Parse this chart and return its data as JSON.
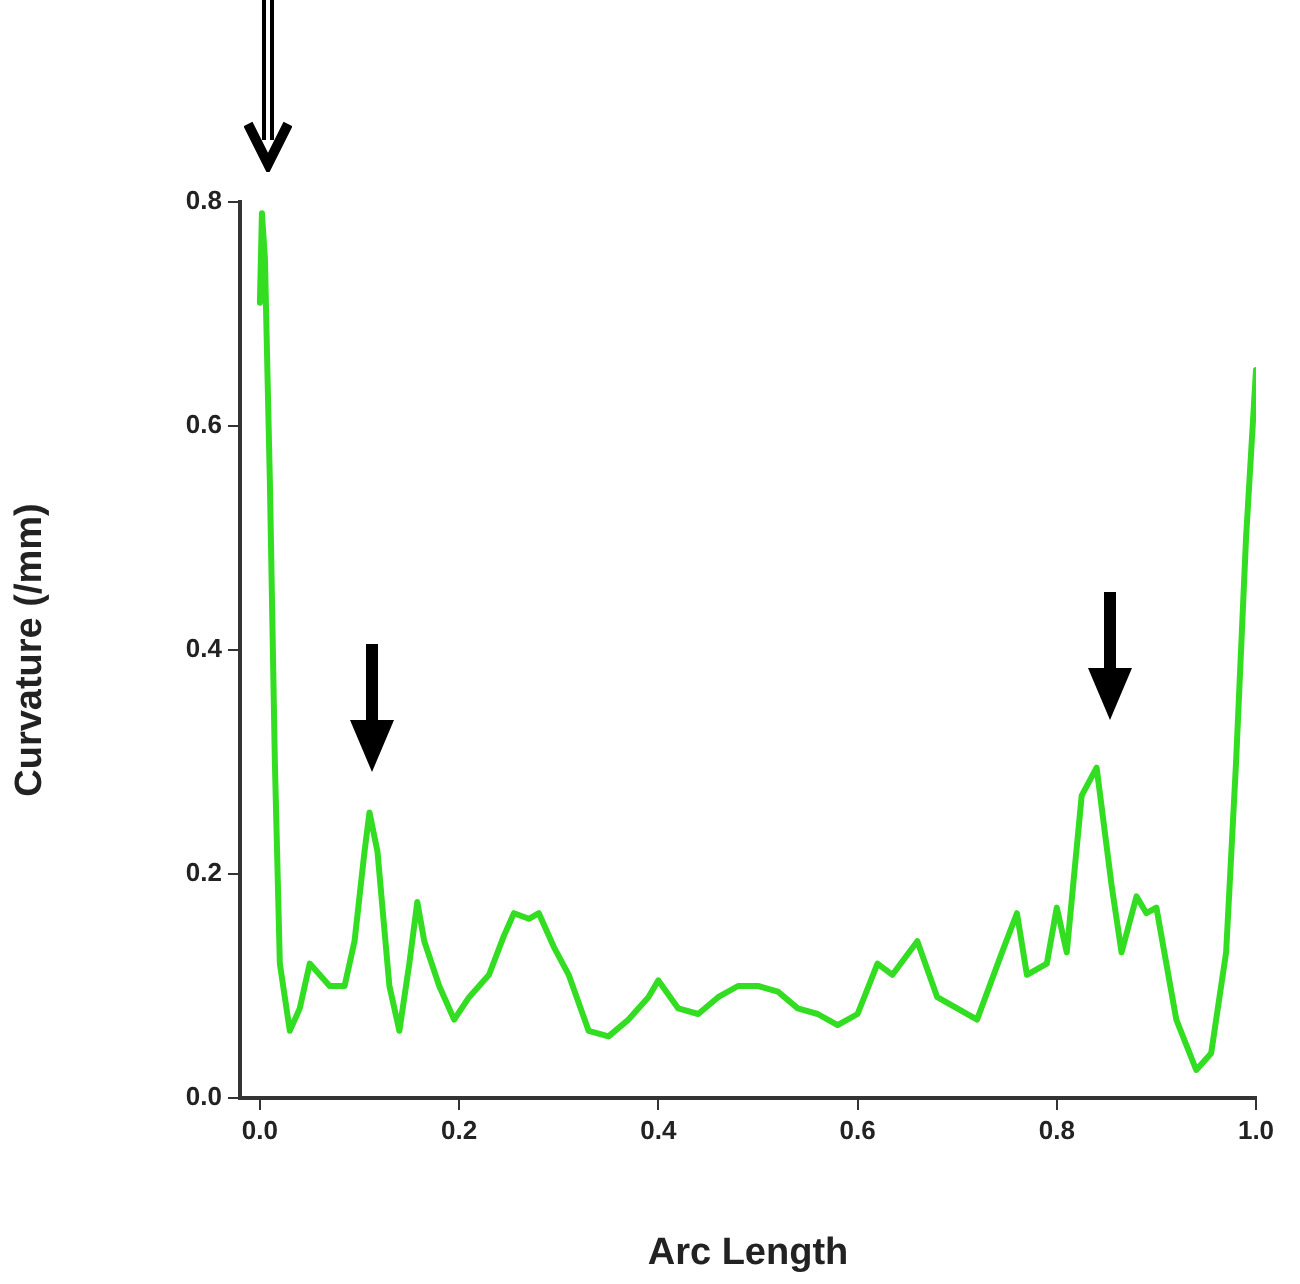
{
  "chart_data": {
    "type": "line",
    "xlabel": "Arc Length",
    "ylabel": "Curvature (/mm)",
    "xlim": [
      -0.02,
      1.0
    ],
    "ylim": [
      0,
      0.8
    ],
    "xticks": [
      {
        "value": 0,
        "label": "0.0"
      },
      {
        "value": 0.2,
        "label": "0.2"
      },
      {
        "value": 0.4,
        "label": "0.4"
      },
      {
        "value": 0.6,
        "label": "0.6"
      },
      {
        "value": 0.8,
        "label": "0.8"
      },
      {
        "value": 1,
        "label": "1.0"
      }
    ],
    "yticks": [
      {
        "value": 0,
        "label": "0.0"
      },
      {
        "value": 0.2,
        "label": "0.2"
      },
      {
        "value": 0.4,
        "label": "0.4"
      },
      {
        "value": 0.6,
        "label": "0.6"
      },
      {
        "value": 0.8,
        "label": "0.8"
      }
    ],
    "grid": false,
    "legend": false,
    "marker": "none",
    "line_style": "solid",
    "series": [
      {
        "color": "#33dd22",
        "x": [
          0,
          0.002,
          0.005,
          0.01,
          0.015,
          0.02,
          0.03,
          0.04,
          0.05,
          0.06,
          0.07,
          0.085,
          0.095,
          0.105,
          0.11,
          0.118,
          0.13,
          0.14,
          0.15,
          0.158,
          0.165,
          0.18,
          0.195,
          0.21,
          0.23,
          0.245,
          0.255,
          0.27,
          0.28,
          0.295,
          0.31,
          0.33,
          0.35,
          0.37,
          0.39,
          0.4,
          0.42,
          0.44,
          0.46,
          0.48,
          0.5,
          0.52,
          0.54,
          0.56,
          0.58,
          0.6,
          0.62,
          0.635,
          0.66,
          0.68,
          0.7,
          0.72,
          0.745,
          0.76,
          0.77,
          0.79,
          0.8,
          0.81,
          0.825,
          0.84,
          0.855,
          0.865,
          0.88,
          0.89,
          0.9,
          0.92,
          0.94,
          0.955,
          0.97,
          0.98,
          0.99,
          1.0
        ],
        "values": [
          0.71,
          0.79,
          0.75,
          0.55,
          0.3,
          0.12,
          0.06,
          0.08,
          0.12,
          0.11,
          0.1,
          0.1,
          0.14,
          0.22,
          0.255,
          0.22,
          0.1,
          0.06,
          0.12,
          0.175,
          0.14,
          0.1,
          0.07,
          0.09,
          0.11,
          0.145,
          0.165,
          0.16,
          0.165,
          0.135,
          0.11,
          0.06,
          0.055,
          0.07,
          0.09,
          0.105,
          0.08,
          0.075,
          0.09,
          0.1,
          0.1,
          0.095,
          0.08,
          0.075,
          0.065,
          0.075,
          0.12,
          0.11,
          0.14,
          0.09,
          0.08,
          0.07,
          0.13,
          0.165,
          0.11,
          0.12,
          0.17,
          0.13,
          0.27,
          0.295,
          0.19,
          0.13,
          0.18,
          0.165,
          0.17,
          0.07,
          0.025,
          0.04,
          0.13,
          0.3,
          0.5,
          0.65
        ]
      }
    ]
  }
}
